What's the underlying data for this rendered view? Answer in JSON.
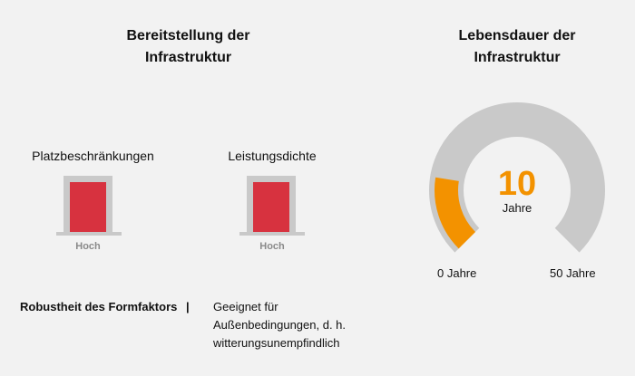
{
  "left_title": [
    "Bereitstellung der",
    "Infrastruktur"
  ],
  "right_title": [
    "Lebensdauer der",
    "Infrastruktur"
  ],
  "indicators": [
    {
      "label": "Platzbeschränkungen",
      "level": "Hoch",
      "color": "#d7323f"
    },
    {
      "label": "Leistungsdichte",
      "level": "Hoch",
      "color": "#d7323f"
    }
  ],
  "gauge": {
    "value": "10",
    "unit": "Jahre",
    "min_label": "0 Jahre",
    "max_label": "50 Jahre",
    "value_fraction": 0.2,
    "fill_color": "#f39200",
    "track_color": "#c9c9c9"
  },
  "robustness": {
    "label": "Robustheit des Formfaktors",
    "separator": "|",
    "value_lines": [
      "Geeignet für",
      "Außenbedingungen, d. h.",
      "witterungsunempfindlich"
    ]
  }
}
